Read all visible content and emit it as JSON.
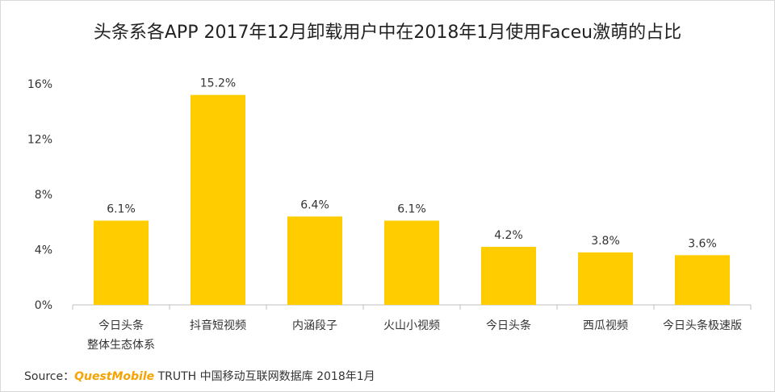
{
  "chart_data": {
    "type": "bar",
    "title": "头条系各APP 2017年12月卸载用户中在2018年1月使用Faceu激萌的占比",
    "xlabel": "",
    "ylabel": "",
    "ylim": [
      0,
      16
    ],
    "yticks": [
      "0%",
      "4%",
      "8%",
      "12%",
      "16%"
    ],
    "ytick_values": [
      0,
      4,
      8,
      12,
      16
    ],
    "grid": false,
    "bar_color": "#ffcc00",
    "categories": [
      [
        "今日头条",
        "整体生态体系"
      ],
      [
        "抖音短视频"
      ],
      [
        "内涵段子"
      ],
      [
        "火山小视频"
      ],
      [
        "今日头条"
      ],
      [
        "西瓜视频"
      ],
      [
        "今日头条极速版"
      ]
    ],
    "values": [
      6.1,
      15.2,
      6.4,
      6.1,
      4.2,
      3.8,
      3.6
    ],
    "value_labels": [
      "6.1%",
      "15.2%",
      "6.4%",
      "6.1%",
      "4.2%",
      "3.8%",
      "3.6%"
    ]
  },
  "source": {
    "prefix": "Source：",
    "brand": "QuestMobile",
    "text": " TRUTH 中国移动互联网数据库 2018年1月"
  }
}
